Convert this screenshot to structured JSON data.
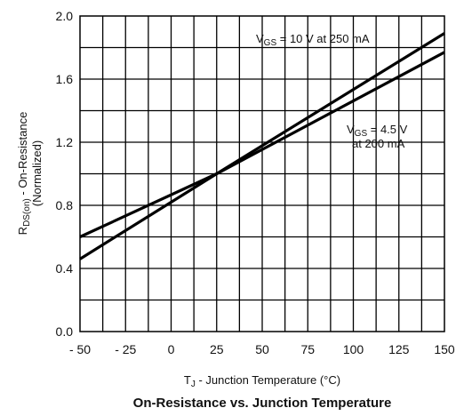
{
  "chart_data": {
    "type": "line",
    "title": "On-Resistance vs. Junction Temperature",
    "xlabel": {
      "main": "T",
      "sub": "J",
      "rest": " - Junction Temperature (°C)"
    },
    "ylabel": {
      "line1_main": "R",
      "line1_sub": "DS(on)",
      "line1_rest": " - On-Resistance",
      "line2": "(Normalized)"
    },
    "xlim": [
      -50,
      150
    ],
    "ylim": [
      0.0,
      2.0
    ],
    "x_ticks": [
      -50,
      -25,
      0,
      25,
      50,
      75,
      100,
      125,
      150
    ],
    "x_tick_labels": [
      "- 50",
      "- 25",
      "0",
      "25",
      "50",
      "75",
      "100",
      "125",
      "150"
    ],
    "y_ticks": [
      0.0,
      0.4,
      0.8,
      1.2,
      1.6,
      2.0
    ],
    "y_tick_labels": [
      "0.0",
      "0.4",
      "0.8",
      "1.2",
      "1.6",
      "2.0"
    ],
    "x_minor_step": 12.5,
    "y_minor_step": 0.2,
    "grid": true,
    "series": [
      {
        "name": "VGS = 10 V at 250 mA",
        "label_parts": {
          "main": "V",
          "sub": "GS",
          "rest": " = 10 V at 250 mA"
        },
        "x": [
          -50,
          25,
          150
        ],
        "y": [
          0.46,
          1.0,
          1.89
        ]
      },
      {
        "name": "VGS = 4.5 V at 200 mA",
        "label_parts": {
          "main": "V",
          "sub": "GS",
          "rest": " = 4.5 V",
          "line2": "at 200 mA"
        },
        "x": [
          -50,
          25,
          150
        ],
        "y": [
          0.6,
          1.0,
          1.77
        ]
      }
    ]
  }
}
